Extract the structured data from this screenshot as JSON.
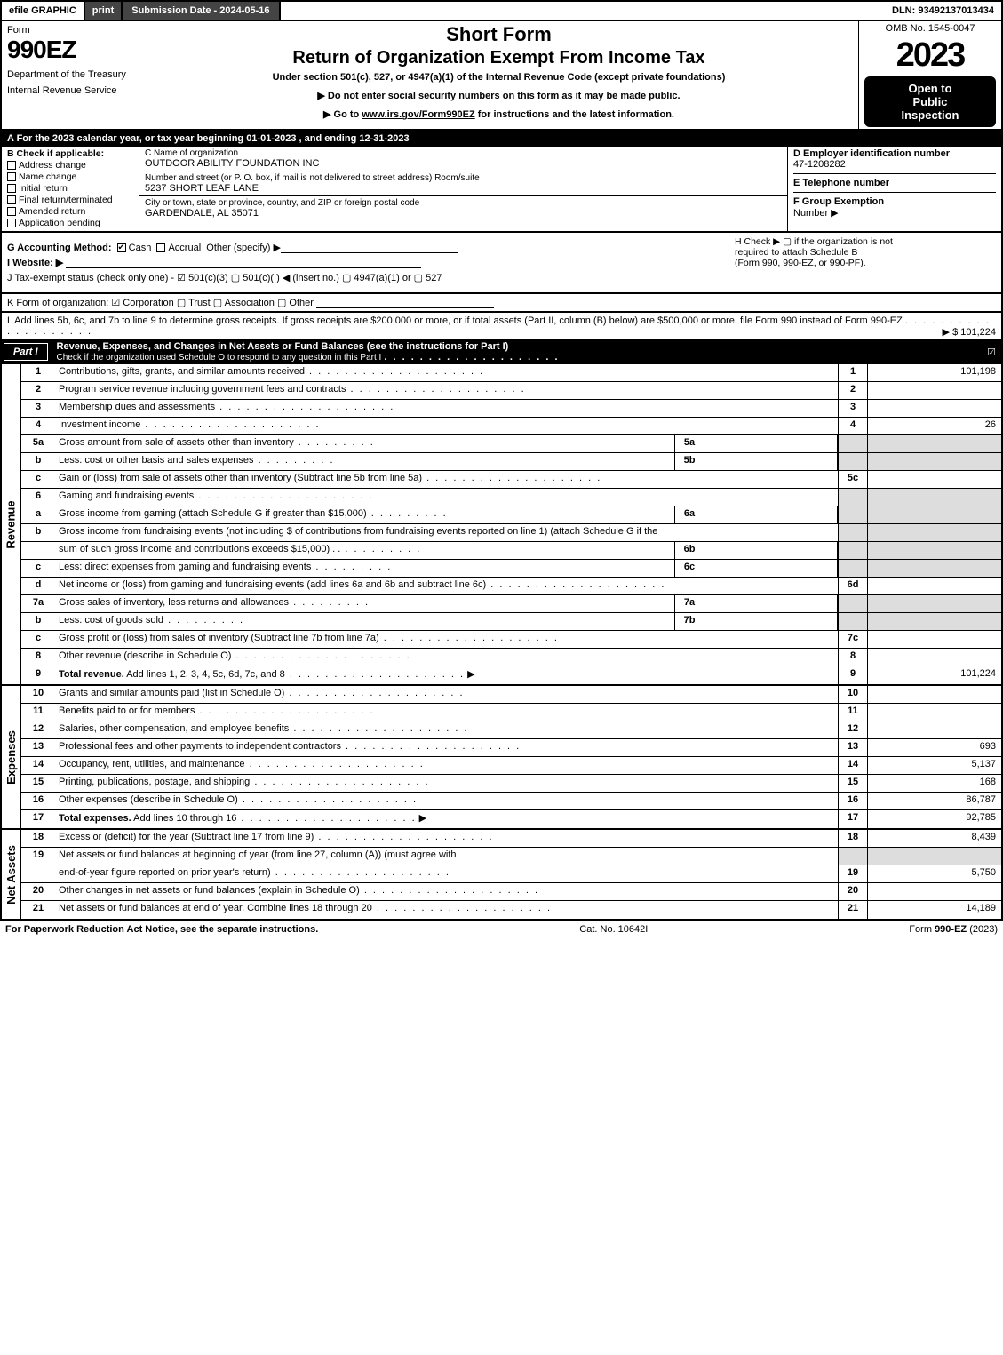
{
  "topbar": {
    "efile": "efile GRAPHIC",
    "print": "print",
    "subdate_label": "Submission Date - 2024-05-16",
    "dln": "DLN: 93492137013434"
  },
  "header": {
    "form_word": "Form",
    "form_num": "990EZ",
    "dept1": "Department of the Treasury",
    "dept2": "Internal Revenue Service",
    "short": "Short Form",
    "return": "Return of Organization Exempt From Income Tax",
    "under": "Under section 501(c), 527, or 4947(a)(1) of the Internal Revenue Code (except private foundations)",
    "nossn": "▶ Do not enter social security numbers on this form as it may be made public.",
    "goto_pre": "▶ Go to ",
    "goto_link": "www.irs.gov/Form990EZ",
    "goto_post": " for instructions and the latest information.",
    "omb": "OMB No. 1545-0047",
    "year": "2023",
    "open1": "Open to",
    "open2": "Public",
    "open3": "Inspection"
  },
  "lineA": "A  For the 2023 calendar year, or tax year beginning 01-01-2023 , and ending 12-31-2023",
  "colB": {
    "head": "B  Check if applicable:",
    "opts": [
      "Address change",
      "Name change",
      "Initial return",
      "Final return/terminated",
      "Amended return",
      "Application pending"
    ]
  },
  "colC": {
    "name_lbl": "C Name of organization",
    "name": "OUTDOOR ABILITY FOUNDATION INC",
    "street_lbl": "Number and street (or P. O. box, if mail is not delivered to street address)       Room/suite",
    "street": "5237 SHORT LEAF LANE",
    "city_lbl": "City or town, state or province, country, and ZIP or foreign postal code",
    "city": "GARDENDALE, AL  35071"
  },
  "colD": {
    "ein_lbl": "D Employer identification number",
    "ein": "47-1208282",
    "tel_lbl": "E Telephone number",
    "tel": "",
    "grp_lbl": "F Group Exemption",
    "grp2": "Number    ▶"
  },
  "sectG": {
    "g": "G Accounting Method:",
    "cash": "Cash",
    "accr": "Accrual",
    "other": "Other (specify) ▶",
    "h": "H   Check ▶   ▢  if the organization is not",
    "h2": "required to attach Schedule B",
    "h3": "(Form 990, 990-EZ, or 990-PF).",
    "i": "I Website: ▶",
    "j": "J Tax-exempt status (check only one) -  ☑ 501(c)(3)  ▢ 501(c)(  ) ◀ (insert no.)  ▢ 4947(a)(1) or  ▢ 527"
  },
  "lineK": "K Form of organization:   ☑ Corporation   ▢ Trust   ▢ Association   ▢ Other",
  "lineL": {
    "text": "L Add lines 5b, 6c, and 7b to line 9 to determine gross receipts. If gross receipts are $200,000 or more, or if total assets (Part II, column (B) below) are $500,000 or more, file Form 990 instead of Form 990-EZ",
    "amount": "▶ $ 101,224"
  },
  "part1": {
    "tab": "Part I",
    "title": "Revenue, Expenses, and Changes in Net Assets or Fund Balances (see the instructions for Part I)",
    "sub": "Check if the organization used Schedule O to respond to any question in this Part I",
    "checked": "☑"
  },
  "sections": {
    "revenue": "Revenue",
    "expenses": "Expenses",
    "netassets": "Net Assets"
  },
  "rows": [
    {
      "n": "1",
      "d": "Contributions, gifts, grants, and similar amounts received",
      "r": "1",
      "a": "101,198"
    },
    {
      "n": "2",
      "d": "Program service revenue including government fees and contracts",
      "r": "2",
      "a": ""
    },
    {
      "n": "3",
      "d": "Membership dues and assessments",
      "r": "3",
      "a": ""
    },
    {
      "n": "4",
      "d": "Investment income",
      "r": "4",
      "a": "26"
    },
    {
      "n": "5a",
      "d": "Gross amount from sale of assets other than inventory",
      "sb": "5a",
      "shade": true
    },
    {
      "n": "b",
      "d": "Less: cost or other basis and sales expenses",
      "sb": "5b",
      "shade": true
    },
    {
      "n": "c",
      "d": "Gain or (loss) from sale of assets other than inventory (Subtract line 5b from line 5a)",
      "r": "5c",
      "a": ""
    },
    {
      "n": "6",
      "d": "Gaming and fundraising events",
      "shade_all": true
    },
    {
      "n": "a",
      "d": "Gross income from gaming (attach Schedule G if greater than $15,000)",
      "sb": "6a",
      "shade": true
    },
    {
      "n": "b",
      "d": "Gross income from fundraising events (not including $                              of contributions from fundraising events reported on line 1) (attach Schedule G if the",
      "nb": true,
      "shade": true
    },
    {
      "n": "",
      "d": "sum of such gross income and contributions exceeds $15,000)     .   .",
      "sb": "6b",
      "shade": true
    },
    {
      "n": "c",
      "d": "Less: direct expenses from gaming and fundraising events",
      "sb": "6c",
      "shade": true
    },
    {
      "n": "d",
      "d": "Net income or (loss) from gaming and fundraising events (add lines 6a and 6b and subtract line 6c)",
      "r": "6d",
      "a": ""
    },
    {
      "n": "7a",
      "d": "Gross sales of inventory, less returns and allowances",
      "sb": "7a",
      "shade": true
    },
    {
      "n": "b",
      "d": "Less: cost of goods sold",
      "sb": "7b",
      "shade": true
    },
    {
      "n": "c",
      "d": "Gross profit or (loss) from sales of inventory (Subtract line 7b from line 7a)",
      "r": "7c",
      "a": ""
    },
    {
      "n": "8",
      "d": "Other revenue (describe in Schedule O)",
      "r": "8",
      "a": ""
    },
    {
      "n": "9",
      "d": "Total revenue. Add lines 1, 2, 3, 4, 5c, 6d, 7c, and 8",
      "r": "9",
      "a": "101,224",
      "bold": true,
      "arrow": true
    }
  ],
  "exp_rows": [
    {
      "n": "10",
      "d": "Grants and similar amounts paid (list in Schedule O)",
      "r": "10",
      "a": ""
    },
    {
      "n": "11",
      "d": "Benefits paid to or for members",
      "r": "11",
      "a": ""
    },
    {
      "n": "12",
      "d": "Salaries, other compensation, and employee benefits",
      "r": "12",
      "a": ""
    },
    {
      "n": "13",
      "d": "Professional fees and other payments to independent contractors",
      "r": "13",
      "a": "693"
    },
    {
      "n": "14",
      "d": "Occupancy, rent, utilities, and maintenance",
      "r": "14",
      "a": "5,137"
    },
    {
      "n": "15",
      "d": "Printing, publications, postage, and shipping",
      "r": "15",
      "a": "168"
    },
    {
      "n": "16",
      "d": "Other expenses (describe in Schedule O)",
      "r": "16",
      "a": "86,787"
    },
    {
      "n": "17",
      "d": "Total expenses. Add lines 10 through 16",
      "r": "17",
      "a": "92,785",
      "bold": true,
      "arrow": true
    }
  ],
  "net_rows": [
    {
      "n": "18",
      "d": "Excess or (deficit) for the year (Subtract line 17 from line 9)",
      "r": "18",
      "a": "8,439"
    },
    {
      "n": "19",
      "d": "Net assets or fund balances at beginning of year (from line 27, column (A)) (must agree with",
      "nb": true,
      "shade": true
    },
    {
      "n": "",
      "d": "end-of-year figure reported on prior year's return)",
      "r": "19",
      "a": "5,750"
    },
    {
      "n": "20",
      "d": "Other changes in net assets or fund balances (explain in Schedule O)",
      "r": "20",
      "a": ""
    },
    {
      "n": "21",
      "d": "Net assets or fund balances at end of year. Combine lines 18 through 20",
      "r": "21",
      "a": "14,189"
    }
  ],
  "footer": {
    "left": "For Paperwork Reduction Act Notice, see the separate instructions.",
    "mid": "Cat. No. 10642I",
    "right": "Form 990-EZ (2023)"
  }
}
